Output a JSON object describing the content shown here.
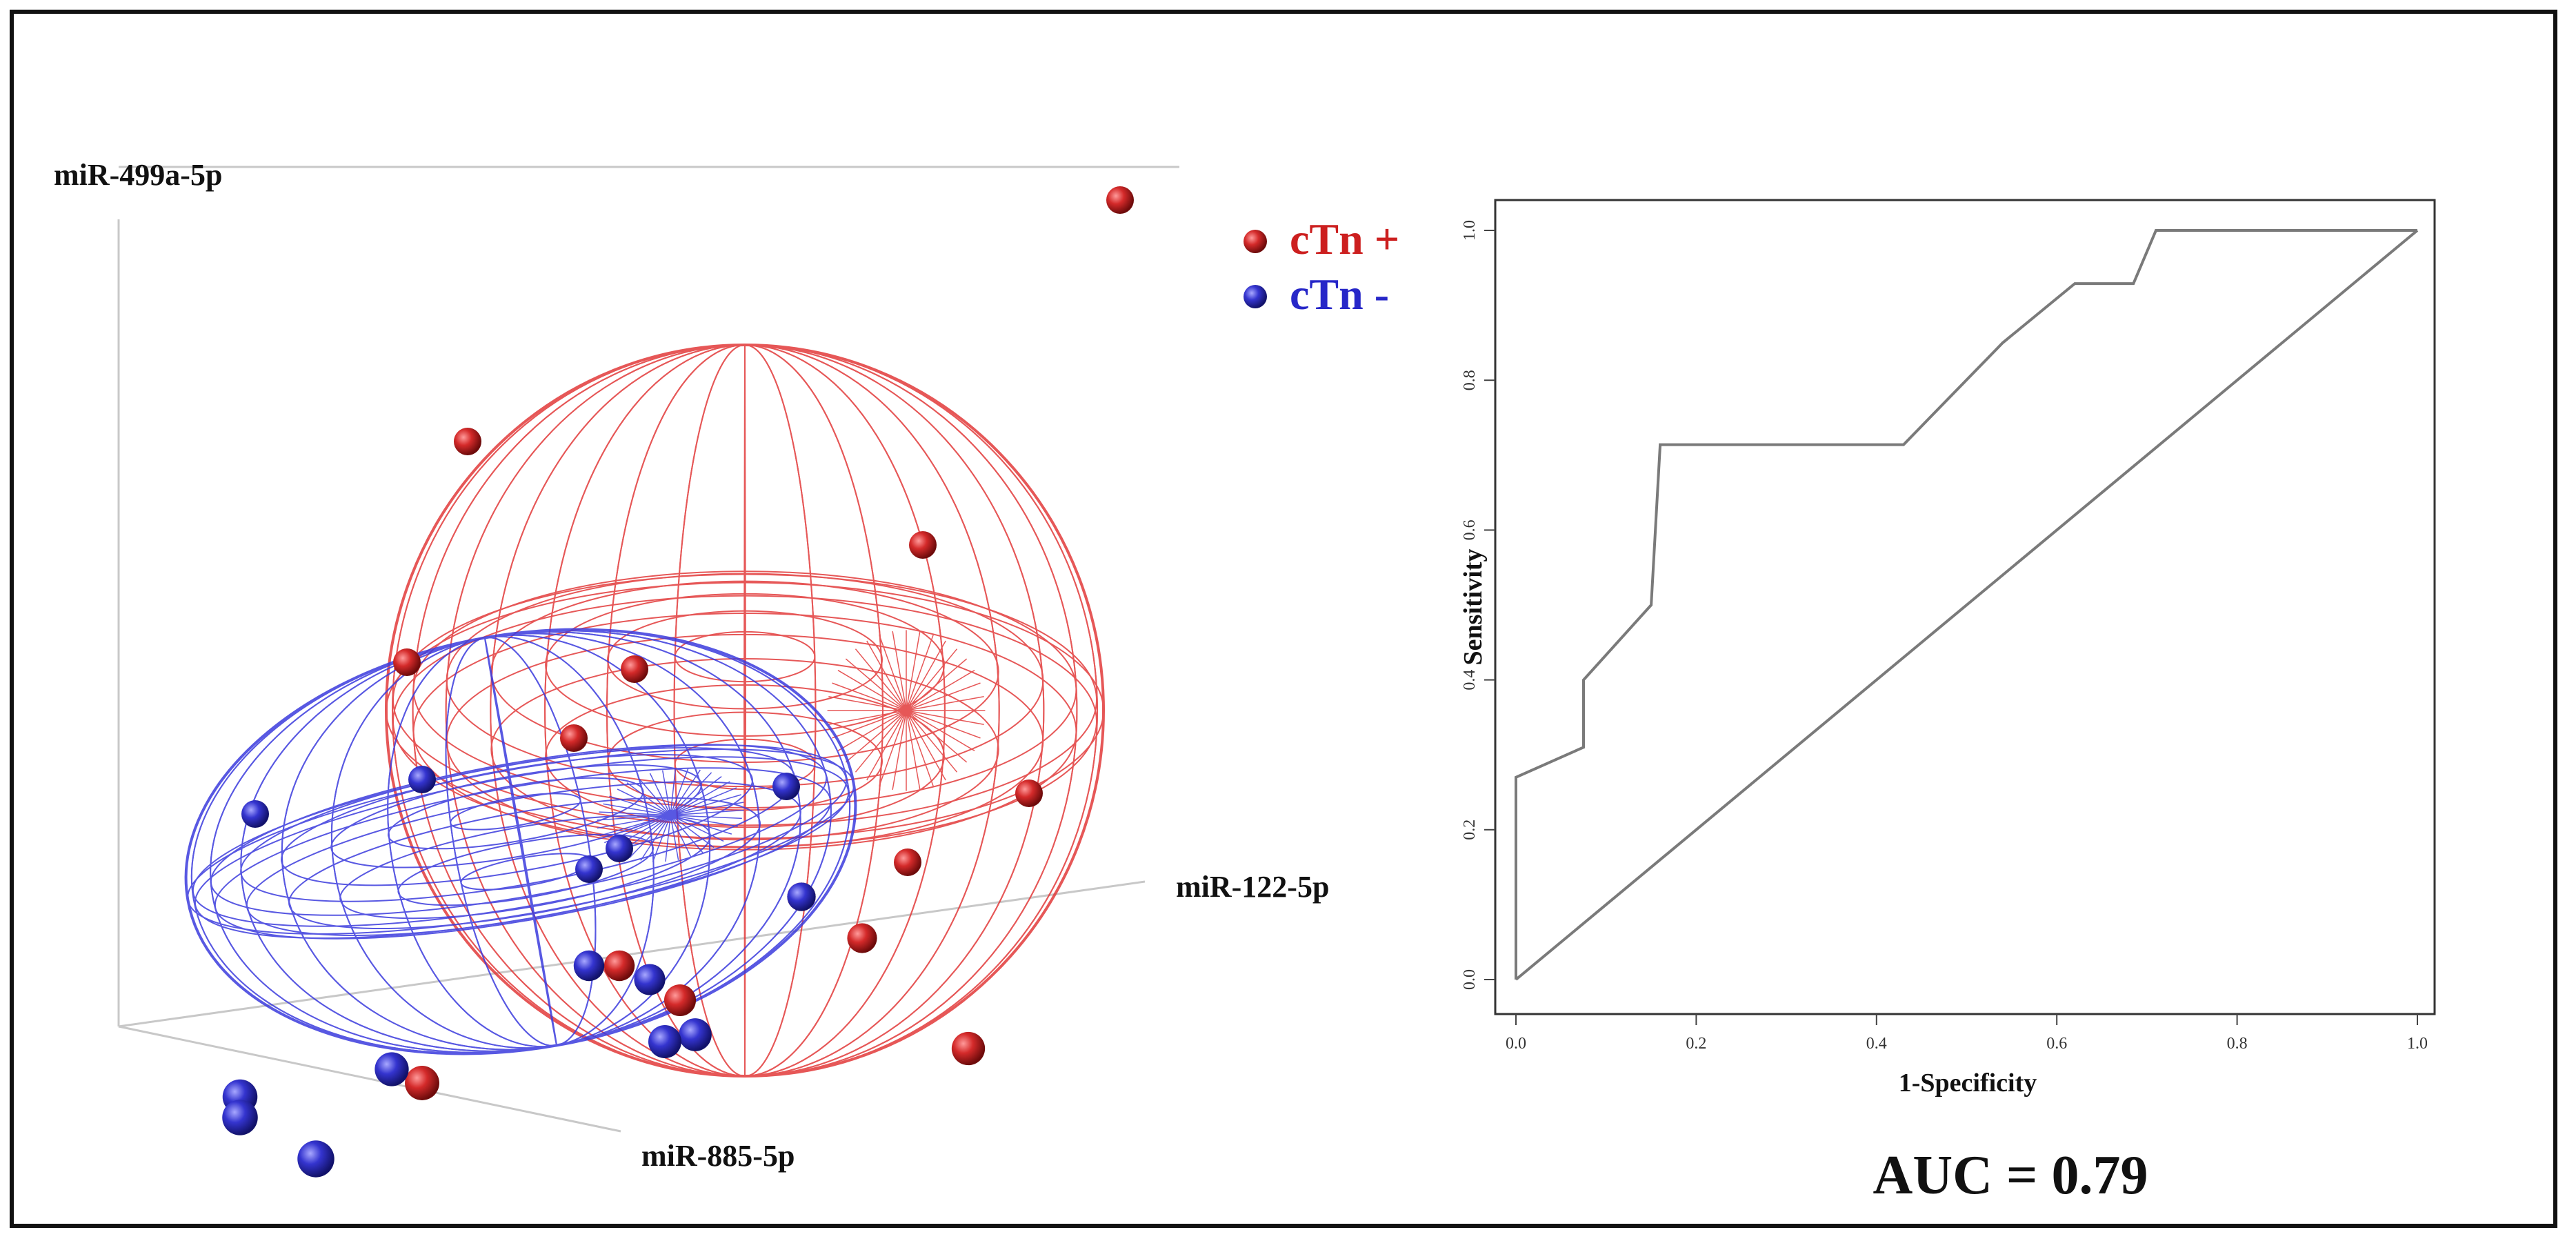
{
  "colors": {
    "positive": "#cc1f1f",
    "negative": "#2727c8",
    "ellipse_red": "#e23a3a",
    "ellipse_blue": "#3b3bdd",
    "roc_line": "#7a7a7a",
    "axis": "#444444"
  },
  "chart_data": [
    {
      "type": "scatter",
      "axes": {
        "x": "miR-122-5p",
        "y": "miR-499a-5p",
        "z": "miR-885-5p"
      },
      "legend": {
        "position": "top-right",
        "entries": [
          {
            "label": "cTn +",
            "color_key": "positive"
          },
          {
            "label": "cTn -",
            "color_key": "negative"
          }
        ]
      },
      "series": [
        {
          "name": "cTn +",
          "points": [
            [
              0.66,
              0.0,
              0.97
            ],
            [
              0.23,
              0.0,
              0.62
            ],
            [
              0.53,
              0.0,
              0.47
            ],
            [
              0.19,
              0.0,
              0.3
            ],
            [
              0.34,
              0.0,
              0.29
            ],
            [
              0.3,
              0.0,
              0.19
            ],
            [
              0.6,
              0.0,
              0.11
            ],
            [
              0.52,
              0.0,
              0.01
            ],
            [
              0.45,
              0.0,
              -0.04
            ],
            [
              0.49,
              0.0,
              -0.1
            ],
            [
              0.33,
              0.0,
              -0.14
            ],
            [
              0.37,
              0.0,
              -0.19
            ],
            [
              0.56,
              0.0,
              -0.26
            ],
            [
              0.2,
              0.0,
              -0.31
            ]
          ]
        },
        {
          "name": "cTn -",
          "points": [
            [
              0.2,
              0.0,
              0.13
            ],
            [
              0.09,
              0.0,
              0.08
            ],
            [
              0.33,
              0.0,
              0.03
            ],
            [
              0.31,
              0.0,
              0.0
            ],
            [
              0.44,
              0.0,
              0.12
            ],
            [
              0.45,
              0.0,
              -0.04
            ],
            [
              0.31,
              0.0,
              -0.14
            ],
            [
              0.38,
              0.0,
              -0.24
            ],
            [
              0.36,
              0.0,
              -0.25
            ],
            [
              0.18,
              0.0,
              -0.29
            ],
            [
              0.08,
              0.0,
              -0.33
            ],
            [
              0.08,
              0.0,
              -0.36
            ],
            [
              0.13,
              0.0,
              -0.42
            ],
            [
              0.35,
              0.0,
              -0.16
            ]
          ]
        }
      ]
    },
    {
      "type": "line",
      "xlabel": "1-Specificity",
      "ylabel": "Sensitivity",
      "xlim": [
        0,
        1
      ],
      "ylim": [
        0,
        1
      ],
      "xticks": [
        "0.0",
        "0.2",
        "0.4",
        "0.6",
        "0.8",
        "1.0"
      ],
      "yticks": [
        "0.0",
        "0.2",
        "0.4",
        "0.6",
        "0.8",
        "1.0"
      ],
      "series": [
        {
          "values": [
            [
              0.0,
              0.0
            ],
            [
              0.0,
              0.27
            ],
            [
              0.075,
              0.31
            ],
            [
              0.075,
              0.4
            ],
            [
              0.15,
              0.5
            ],
            [
              0.16,
              0.714
            ],
            [
              0.43,
              0.714
            ],
            [
              0.54,
              0.85
            ],
            [
              0.62,
              0.929
            ],
            [
              0.685,
              0.929
            ],
            [
              0.71,
              1.0
            ],
            [
              1.0,
              1.0
            ]
          ]
        },
        {
          "values": [
            [
              0.0,
              0.0
            ],
            [
              1.0,
              1.0
            ]
          ]
        }
      ],
      "annotation": "AUC = 0.79"
    }
  ]
}
